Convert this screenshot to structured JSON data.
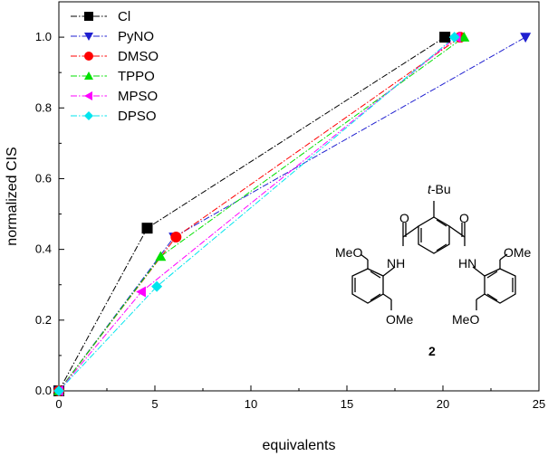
{
  "chart_data": {
    "type": "line",
    "xlabel": "equivalents",
    "ylabel": "normalized CIS",
    "xlim": [
      0,
      25
    ],
    "ylim": [
      0,
      1.1
    ],
    "xticks": [
      0,
      5,
      10,
      15,
      20,
      25
    ],
    "yticks": [
      0.0,
      0.2,
      0.4,
      0.6,
      0.8,
      1.0
    ],
    "ytick_labels": [
      "0.0",
      "0.2",
      "0.4",
      "0.6",
      "0.8",
      "1.0"
    ],
    "legend_position": "top-left",
    "series": [
      {
        "name": "Cl",
        "color": "#000000",
        "marker": "square",
        "x": [
          0,
          4.6,
          20.1
        ],
        "y": [
          0,
          0.46,
          1.0
        ]
      },
      {
        "name": "PyNO",
        "color": "#1f1fd0",
        "marker": "triangle-down",
        "x": [
          0,
          6.0,
          24.3
        ],
        "y": [
          0,
          0.435,
          1.0
        ]
      },
      {
        "name": "DMSO",
        "color": "#ff0000",
        "marker": "circle",
        "x": [
          0,
          6.1,
          20.9
        ],
        "y": [
          0,
          0.435,
          1.0
        ]
      },
      {
        "name": "TPPO",
        "color": "#00e000",
        "marker": "triangle-up",
        "x": [
          0,
          5.3,
          21.1
        ],
        "y": [
          0,
          0.38,
          1.0
        ]
      },
      {
        "name": "MPSO",
        "color": "#ff00ff",
        "marker": "triangle-left",
        "x": [
          0,
          4.3,
          20.7
        ],
        "y": [
          0,
          0.28,
          1.0
        ]
      },
      {
        "name": "DPSO",
        "color": "#00e5ee",
        "marker": "diamond",
        "x": [
          0,
          5.1,
          20.6
        ],
        "y": [
          0,
          0.295,
          1.0
        ]
      }
    ],
    "structure_labels": {
      "tbu_t": "t",
      "tbu_rest": "-Bu",
      "o_left": "O",
      "o_right": "O",
      "nh_left": "NH",
      "nh_right": "HN",
      "ome_top_left": "MeO",
      "ome_top_right": "OMe",
      "ome_bottom_left": "OMe",
      "ome_bottom_right": "MeO",
      "compound_number": "2"
    }
  }
}
